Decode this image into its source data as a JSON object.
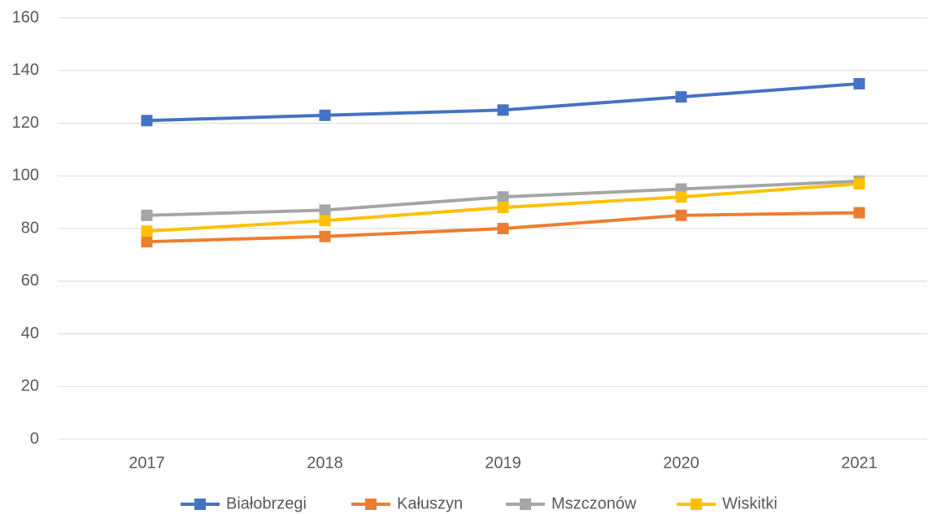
{
  "chart_data": {
    "type": "line",
    "categories": [
      "2017",
      "2018",
      "2019",
      "2020",
      "2021"
    ],
    "series": [
      {
        "name": "Białobrzegi",
        "color": "#4472c4",
        "values": [
          121,
          123,
          125,
          130,
          135
        ]
      },
      {
        "name": "Kałuszyn",
        "color": "#ed7d31",
        "values": [
          75,
          77,
          80,
          85,
          86
        ]
      },
      {
        "name": "Mszczonów",
        "color": "#a5a5a5",
        "values": [
          85,
          87,
          92,
          95,
          98
        ]
      },
      {
        "name": "Wiskitki",
        "color": "#ffc000",
        "values": [
          79,
          83,
          88,
          92,
          97
        ]
      }
    ],
    "ylim": [
      0,
      160
    ],
    "yticks": [
      0,
      20,
      40,
      60,
      80,
      100,
      120,
      140,
      160
    ],
    "grid": true,
    "legend": "bottom"
  }
}
